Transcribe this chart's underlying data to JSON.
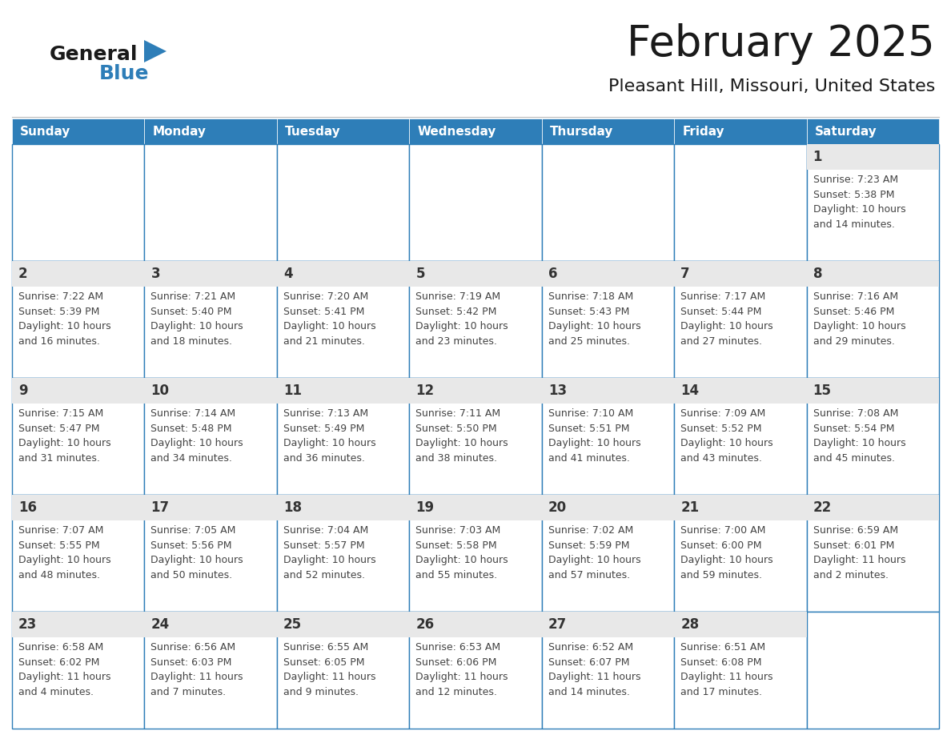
{
  "title": "February 2025",
  "subtitle": "Pleasant Hill, Missouri, United States",
  "header_color": "#2E7EB8",
  "header_text_color": "#FFFFFF",
  "cell_bg_color": "#FFFFFF",
  "cell_top_bg_color": "#EAEAEA",
  "border_color": "#2E7EB8",
  "text_color": "#444444",
  "day_number_color": "#333333",
  "days_of_week": [
    "Sunday",
    "Monday",
    "Tuesday",
    "Wednesday",
    "Thursday",
    "Friday",
    "Saturday"
  ],
  "calendar_data": [
    [
      {
        "day": "",
        "info": ""
      },
      {
        "day": "",
        "info": ""
      },
      {
        "day": "",
        "info": ""
      },
      {
        "day": "",
        "info": ""
      },
      {
        "day": "",
        "info": ""
      },
      {
        "day": "",
        "info": ""
      },
      {
        "day": "1",
        "info": "Sunrise: 7:23 AM\nSunset: 5:38 PM\nDaylight: 10 hours\nand 14 minutes."
      }
    ],
    [
      {
        "day": "2",
        "info": "Sunrise: 7:22 AM\nSunset: 5:39 PM\nDaylight: 10 hours\nand 16 minutes."
      },
      {
        "day": "3",
        "info": "Sunrise: 7:21 AM\nSunset: 5:40 PM\nDaylight: 10 hours\nand 18 minutes."
      },
      {
        "day": "4",
        "info": "Sunrise: 7:20 AM\nSunset: 5:41 PM\nDaylight: 10 hours\nand 21 minutes."
      },
      {
        "day": "5",
        "info": "Sunrise: 7:19 AM\nSunset: 5:42 PM\nDaylight: 10 hours\nand 23 minutes."
      },
      {
        "day": "6",
        "info": "Sunrise: 7:18 AM\nSunset: 5:43 PM\nDaylight: 10 hours\nand 25 minutes."
      },
      {
        "day": "7",
        "info": "Sunrise: 7:17 AM\nSunset: 5:44 PM\nDaylight: 10 hours\nand 27 minutes."
      },
      {
        "day": "8",
        "info": "Sunrise: 7:16 AM\nSunset: 5:46 PM\nDaylight: 10 hours\nand 29 minutes."
      }
    ],
    [
      {
        "day": "9",
        "info": "Sunrise: 7:15 AM\nSunset: 5:47 PM\nDaylight: 10 hours\nand 31 minutes."
      },
      {
        "day": "10",
        "info": "Sunrise: 7:14 AM\nSunset: 5:48 PM\nDaylight: 10 hours\nand 34 minutes."
      },
      {
        "day": "11",
        "info": "Sunrise: 7:13 AM\nSunset: 5:49 PM\nDaylight: 10 hours\nand 36 minutes."
      },
      {
        "day": "12",
        "info": "Sunrise: 7:11 AM\nSunset: 5:50 PM\nDaylight: 10 hours\nand 38 minutes."
      },
      {
        "day": "13",
        "info": "Sunrise: 7:10 AM\nSunset: 5:51 PM\nDaylight: 10 hours\nand 41 minutes."
      },
      {
        "day": "14",
        "info": "Sunrise: 7:09 AM\nSunset: 5:52 PM\nDaylight: 10 hours\nand 43 minutes."
      },
      {
        "day": "15",
        "info": "Sunrise: 7:08 AM\nSunset: 5:54 PM\nDaylight: 10 hours\nand 45 minutes."
      }
    ],
    [
      {
        "day": "16",
        "info": "Sunrise: 7:07 AM\nSunset: 5:55 PM\nDaylight: 10 hours\nand 48 minutes."
      },
      {
        "day": "17",
        "info": "Sunrise: 7:05 AM\nSunset: 5:56 PM\nDaylight: 10 hours\nand 50 minutes."
      },
      {
        "day": "18",
        "info": "Sunrise: 7:04 AM\nSunset: 5:57 PM\nDaylight: 10 hours\nand 52 minutes."
      },
      {
        "day": "19",
        "info": "Sunrise: 7:03 AM\nSunset: 5:58 PM\nDaylight: 10 hours\nand 55 minutes."
      },
      {
        "day": "20",
        "info": "Sunrise: 7:02 AM\nSunset: 5:59 PM\nDaylight: 10 hours\nand 57 minutes."
      },
      {
        "day": "21",
        "info": "Sunrise: 7:00 AM\nSunset: 6:00 PM\nDaylight: 10 hours\nand 59 minutes."
      },
      {
        "day": "22",
        "info": "Sunrise: 6:59 AM\nSunset: 6:01 PM\nDaylight: 11 hours\nand 2 minutes."
      }
    ],
    [
      {
        "day": "23",
        "info": "Sunrise: 6:58 AM\nSunset: 6:02 PM\nDaylight: 11 hours\nand 4 minutes."
      },
      {
        "day": "24",
        "info": "Sunrise: 6:56 AM\nSunset: 6:03 PM\nDaylight: 11 hours\nand 7 minutes."
      },
      {
        "day": "25",
        "info": "Sunrise: 6:55 AM\nSunset: 6:05 PM\nDaylight: 11 hours\nand 9 minutes."
      },
      {
        "day": "26",
        "info": "Sunrise: 6:53 AM\nSunset: 6:06 PM\nDaylight: 11 hours\nand 12 minutes."
      },
      {
        "day": "27",
        "info": "Sunrise: 6:52 AM\nSunset: 6:07 PM\nDaylight: 11 hours\nand 14 minutes."
      },
      {
        "day": "28",
        "info": "Sunrise: 6:51 AM\nSunset: 6:08 PM\nDaylight: 11 hours\nand 17 minutes."
      },
      {
        "day": "",
        "info": ""
      }
    ]
  ],
  "logo_general_color": "#1a1a1a",
  "logo_blue_color": "#2E7EB8",
  "logo_triangle_color": "#2E7EB8"
}
